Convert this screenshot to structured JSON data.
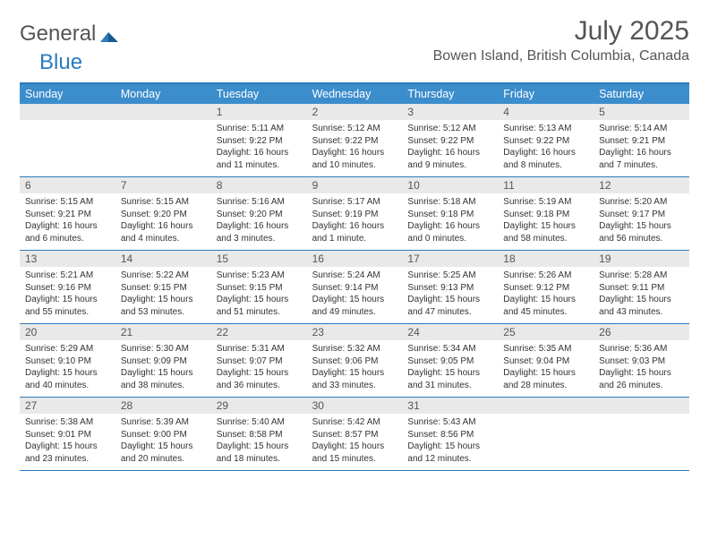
{
  "logo": {
    "text1": "General",
    "text2": "Blue"
  },
  "title": "July 2025",
  "location": "Bowen Island, British Columbia, Canada",
  "colors": {
    "header_bar": "#3c8dcc",
    "border": "#2b7bbf",
    "daynum_bg": "#e9e9e9",
    "text": "#333333",
    "title_text": "#555555"
  },
  "weekdays": [
    "Sunday",
    "Monday",
    "Tuesday",
    "Wednesday",
    "Thursday",
    "Friday",
    "Saturday"
  ],
  "weeks": [
    [
      null,
      null,
      {
        "n": "1",
        "sunrise": "5:11 AM",
        "sunset": "9:22 PM",
        "daylight": "16 hours and 11 minutes."
      },
      {
        "n": "2",
        "sunrise": "5:12 AM",
        "sunset": "9:22 PM",
        "daylight": "16 hours and 10 minutes."
      },
      {
        "n": "3",
        "sunrise": "5:12 AM",
        "sunset": "9:22 PM",
        "daylight": "16 hours and 9 minutes."
      },
      {
        "n": "4",
        "sunrise": "5:13 AM",
        "sunset": "9:22 PM",
        "daylight": "16 hours and 8 minutes."
      },
      {
        "n": "5",
        "sunrise": "5:14 AM",
        "sunset": "9:21 PM",
        "daylight": "16 hours and 7 minutes."
      }
    ],
    [
      {
        "n": "6",
        "sunrise": "5:15 AM",
        "sunset": "9:21 PM",
        "daylight": "16 hours and 6 minutes."
      },
      {
        "n": "7",
        "sunrise": "5:15 AM",
        "sunset": "9:20 PM",
        "daylight": "16 hours and 4 minutes."
      },
      {
        "n": "8",
        "sunrise": "5:16 AM",
        "sunset": "9:20 PM",
        "daylight": "16 hours and 3 minutes."
      },
      {
        "n": "9",
        "sunrise": "5:17 AM",
        "sunset": "9:19 PM",
        "daylight": "16 hours and 1 minute."
      },
      {
        "n": "10",
        "sunrise": "5:18 AM",
        "sunset": "9:18 PM",
        "daylight": "16 hours and 0 minutes."
      },
      {
        "n": "11",
        "sunrise": "5:19 AM",
        "sunset": "9:18 PM",
        "daylight": "15 hours and 58 minutes."
      },
      {
        "n": "12",
        "sunrise": "5:20 AM",
        "sunset": "9:17 PM",
        "daylight": "15 hours and 56 minutes."
      }
    ],
    [
      {
        "n": "13",
        "sunrise": "5:21 AM",
        "sunset": "9:16 PM",
        "daylight": "15 hours and 55 minutes."
      },
      {
        "n": "14",
        "sunrise": "5:22 AM",
        "sunset": "9:15 PM",
        "daylight": "15 hours and 53 minutes."
      },
      {
        "n": "15",
        "sunrise": "5:23 AM",
        "sunset": "9:15 PM",
        "daylight": "15 hours and 51 minutes."
      },
      {
        "n": "16",
        "sunrise": "5:24 AM",
        "sunset": "9:14 PM",
        "daylight": "15 hours and 49 minutes."
      },
      {
        "n": "17",
        "sunrise": "5:25 AM",
        "sunset": "9:13 PM",
        "daylight": "15 hours and 47 minutes."
      },
      {
        "n": "18",
        "sunrise": "5:26 AM",
        "sunset": "9:12 PM",
        "daylight": "15 hours and 45 minutes."
      },
      {
        "n": "19",
        "sunrise": "5:28 AM",
        "sunset": "9:11 PM",
        "daylight": "15 hours and 43 minutes."
      }
    ],
    [
      {
        "n": "20",
        "sunrise": "5:29 AM",
        "sunset": "9:10 PM",
        "daylight": "15 hours and 40 minutes."
      },
      {
        "n": "21",
        "sunrise": "5:30 AM",
        "sunset": "9:09 PM",
        "daylight": "15 hours and 38 minutes."
      },
      {
        "n": "22",
        "sunrise": "5:31 AM",
        "sunset": "9:07 PM",
        "daylight": "15 hours and 36 minutes."
      },
      {
        "n": "23",
        "sunrise": "5:32 AM",
        "sunset": "9:06 PM",
        "daylight": "15 hours and 33 minutes."
      },
      {
        "n": "24",
        "sunrise": "5:34 AM",
        "sunset": "9:05 PM",
        "daylight": "15 hours and 31 minutes."
      },
      {
        "n": "25",
        "sunrise": "5:35 AM",
        "sunset": "9:04 PM",
        "daylight": "15 hours and 28 minutes."
      },
      {
        "n": "26",
        "sunrise": "5:36 AM",
        "sunset": "9:03 PM",
        "daylight": "15 hours and 26 minutes."
      }
    ],
    [
      {
        "n": "27",
        "sunrise": "5:38 AM",
        "sunset": "9:01 PM",
        "daylight": "15 hours and 23 minutes."
      },
      {
        "n": "28",
        "sunrise": "5:39 AM",
        "sunset": "9:00 PM",
        "daylight": "15 hours and 20 minutes."
      },
      {
        "n": "29",
        "sunrise": "5:40 AM",
        "sunset": "8:58 PM",
        "daylight": "15 hours and 18 minutes."
      },
      {
        "n": "30",
        "sunrise": "5:42 AM",
        "sunset": "8:57 PM",
        "daylight": "15 hours and 15 minutes."
      },
      {
        "n": "31",
        "sunrise": "5:43 AM",
        "sunset": "8:56 PM",
        "daylight": "15 hours and 12 minutes."
      },
      null,
      null
    ]
  ],
  "labels": {
    "sunrise": "Sunrise:",
    "sunset": "Sunset:",
    "daylight": "Daylight:"
  }
}
